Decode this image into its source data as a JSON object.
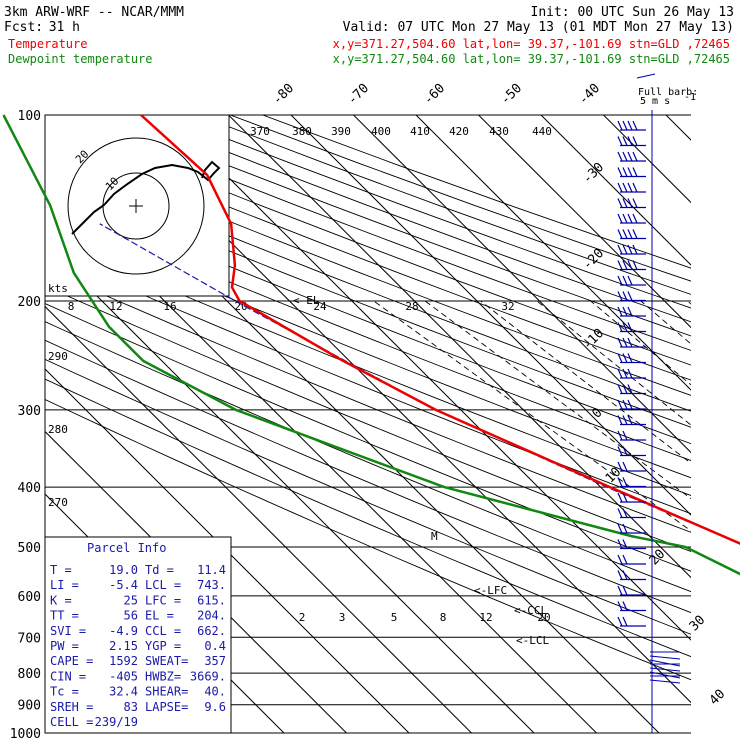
{
  "header": {
    "model": "3km ARW-WRF -- NCAR/MMM",
    "init": "Init: 00 UTC Sun 26 May 13",
    "fcst_label": "Fcst:",
    "fcst_value": "31 h",
    "valid": "Valid: 07 UTC Mon 27 May 13 (01 MDT Mon 27 May 13)",
    "temp_label": "Temperature",
    "temp_loc": "x,y=371.27,504.60   lat,lon= 39.37,-101.69   stn=GLD ,72465",
    "dew_label": "Dewpoint temperature",
    "dew_loc": "x,y=371.27,504.60   lat,lon= 39.37,-101.69   stn=GLD ,72465"
  },
  "colors": {
    "temperature": "#ee0000",
    "dewpoint": "#118811",
    "parcel": "#1a1aaa",
    "wind": "#0000aa"
  },
  "wind_legend": {
    "title": "Full barb:",
    "value": "5 m s",
    "sup": "-1"
  },
  "chart_data": {
    "type": "line",
    "ylabel": "",
    "pressure_levels": [
      100,
      200,
      300,
      400,
      500,
      600,
      700,
      800,
      900,
      1000
    ],
    "isotherm_labels": [
      "-80",
      "-70",
      "-60",
      "-50",
      "-40",
      "-30",
      "-20",
      "-10",
      "0",
      "10",
      "20",
      "30",
      "40"
    ],
    "theta_labels": [
      "370",
      "380",
      "390",
      "400",
      "410",
      "420",
      "430",
      "440"
    ],
    "theta_left_labels": [
      "290",
      "280",
      "270"
    ],
    "hodograph": {
      "ring_labels": [
        "10",
        "20"
      ],
      "speed_unit": "kts"
    },
    "speed_scale": [
      "8",
      "12",
      "16",
      "20",
      "24",
      "28",
      "32"
    ],
    "mixing_ratio_labels": [
      "2",
      "3",
      "5",
      "8",
      "12",
      "20"
    ],
    "annotations": [
      "<-EL",
      "<-LFC",
      "<-CCL",
      "<-LCL",
      "M"
    ],
    "series": [
      {
        "name": "Temperature",
        "points": [
          [
            100,
            -44
          ],
          [
            125,
            -43
          ],
          [
            150,
            -47
          ],
          [
            175,
            -53
          ],
          [
            190,
            -57
          ],
          [
            200,
            -58
          ],
          [
            250,
            -51
          ],
          [
            300,
            -44
          ],
          [
            400,
            -28.5
          ],
          [
            500,
            -16
          ],
          [
            600,
            -7
          ],
          [
            700,
            2
          ],
          [
            750,
            6.5
          ],
          [
            800,
            9.5
          ],
          [
            850,
            11
          ],
          [
            880,
            15
          ],
          [
            890,
            13
          ]
        ]
      },
      {
        "name": "Dewpoint temperature",
        "points": [
          [
            100,
            -66
          ],
          [
            140,
            -73
          ],
          [
            180,
            -80
          ],
          [
            220,
            -83
          ],
          [
            250,
            -83
          ],
          [
            300,
            -76
          ],
          [
            400,
            -55
          ],
          [
            480,
            -33
          ],
          [
            500,
            -26
          ],
          [
            600,
            -18
          ],
          [
            650,
            -16.5
          ],
          [
            700,
            -15
          ],
          [
            800,
            1
          ],
          [
            840,
            2.5
          ],
          [
            870,
            -1
          ],
          [
            880,
            -3
          ]
        ]
      }
    ]
  },
  "parcel_info": {
    "title": "Parcel Info",
    "rows": [
      [
        "T   =",
        "19.0",
        "Td =",
        "11.4"
      ],
      [
        "LI  =",
        "-5.4",
        "LCL =",
        "743."
      ],
      [
        "K   =",
        "25",
        "LFC =",
        "615."
      ],
      [
        "TT  =",
        "56",
        "EL  =",
        "204."
      ],
      [
        "SVI =",
        "-4.9",
        "CCL =",
        "662."
      ],
      [
        "PW  =",
        "2.15",
        "YGP =",
        "0.4"
      ],
      [
        "CAPE =",
        "1592",
        "SWEAT=",
        "357"
      ],
      [
        "CIN =",
        "-405",
        "HWBZ=",
        "3669."
      ],
      [
        "Tc  =",
        "32.4",
        "SHEAR=",
        "40."
      ],
      [
        "SREH =",
        "83",
        "LAPSE=",
        "9.6"
      ],
      [
        "CELL =",
        "239/19",
        "",
        ""
      ]
    ]
  }
}
